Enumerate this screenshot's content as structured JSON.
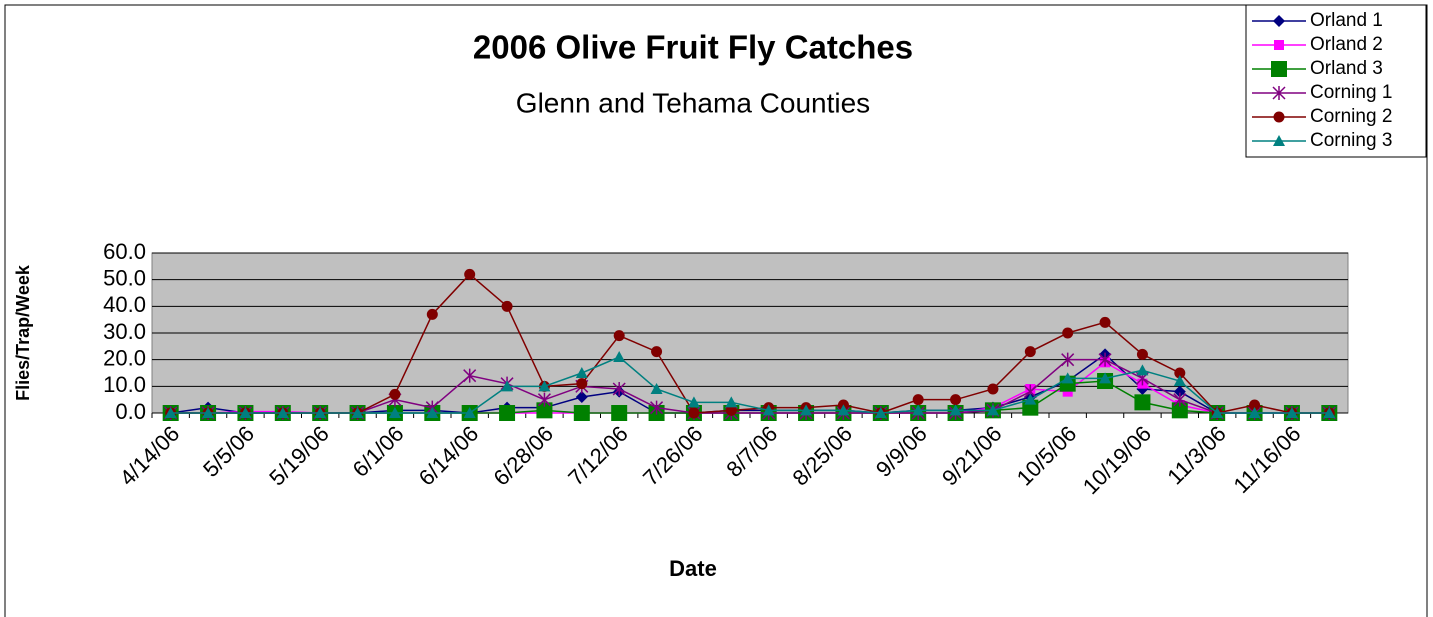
{
  "chart_data": {
    "type": "line",
    "title": "2006 Olive Fruit Fly Catches",
    "subtitle": "Glenn and Tehama Counties",
    "x_label": "Date",
    "y_label": "Flies/Trap/Week",
    "categories": [
      "4/14/06",
      null,
      "5/5/06",
      null,
      "5/19/06",
      null,
      "6/1/06",
      null,
      "6/14/06",
      null,
      "6/28/06",
      null,
      "7/12/06",
      null,
      "7/26/06",
      null,
      "8/7/06",
      null,
      "8/25/06",
      null,
      "9/9/06",
      null,
      "9/21/06",
      null,
      "10/5/06",
      null,
      "10/19/06",
      null,
      "11/3/06",
      null,
      "11/16/06",
      null
    ],
    "series": [
      {
        "name": "Orland 1",
        "color": "#000080",
        "marker": "diamond",
        "values": [
          0,
          2,
          0,
          0,
          0,
          0,
          1,
          1,
          0,
          2,
          2,
          6,
          8,
          0,
          0,
          1,
          1,
          1,
          1,
          0,
          1,
          1,
          2,
          6,
          12,
          22,
          9,
          8,
          0,
          0,
          0,
          0
        ]
      },
      {
        "name": "Orland 2",
        "color": "#ff00ff",
        "marker": "square",
        "values": [
          0,
          0,
          0.5,
          0.5,
          0,
          0,
          0,
          0,
          0,
          0,
          0,
          0,
          0,
          0,
          0,
          0,
          0,
          0,
          0,
          0,
          0,
          0,
          2,
          9,
          8,
          19,
          11,
          3,
          0,
          0,
          0,
          0
        ]
      },
      {
        "name": "Orland 3",
        "color": "#008000",
        "marker": "bigsquare",
        "values": [
          0,
          0,
          0,
          0,
          0,
          0,
          0,
          0,
          0,
          0,
          1,
          0,
          0,
          0,
          0,
          0,
          0,
          0,
          0,
          0,
          0,
          0,
          1,
          2,
          11,
          12,
          4,
          1,
          0,
          0,
          0,
          0
        ]
      },
      {
        "name": "Corning 1",
        "color": "#800080",
        "marker": "star",
        "values": [
          0,
          0,
          0,
          0,
          0,
          0,
          5,
          2,
          14,
          11,
          5,
          10,
          9,
          2,
          0,
          0,
          0,
          0,
          0,
          0,
          0,
          0,
          1,
          8,
          20,
          20,
          13,
          5,
          0,
          0,
          0,
          0
        ]
      },
      {
        "name": "Corning 2",
        "color": "#800000",
        "marker": "circle",
        "values": [
          0,
          0,
          0,
          0,
          0,
          0,
          7,
          37,
          52,
          40,
          10,
          11,
          29,
          23,
          0,
          1,
          2,
          2,
          3,
          0,
          5,
          5,
          9,
          23,
          30,
          34,
          22,
          15,
          0,
          3,
          0,
          0
        ]
      },
      {
        "name": "Corning 3",
        "color": "#008080",
        "marker": "triangle",
        "values": [
          0,
          0,
          0,
          0,
          0,
          0,
          0,
          0,
          0,
          10,
          10,
          15,
          21,
          9,
          4,
          4,
          1,
          1,
          1,
          0,
          1,
          1,
          1,
          5,
          13,
          13,
          16,
          12,
          0,
          0,
          0,
          0
        ]
      }
    ],
    "ylim": [
      0,
      60
    ],
    "yticks": [
      {
        "value": 0,
        "label": "0.0"
      },
      {
        "value": 10,
        "label": "10.0"
      },
      {
        "value": 20,
        "label": "20.0"
      },
      {
        "value": 30,
        "label": "30.0"
      },
      {
        "value": 40,
        "label": "40.0"
      },
      {
        "value": 50,
        "label": "50.0"
      },
      {
        "value": 60,
        "label": "60.0"
      }
    ],
    "grid": true,
    "legend": "top-right"
  }
}
